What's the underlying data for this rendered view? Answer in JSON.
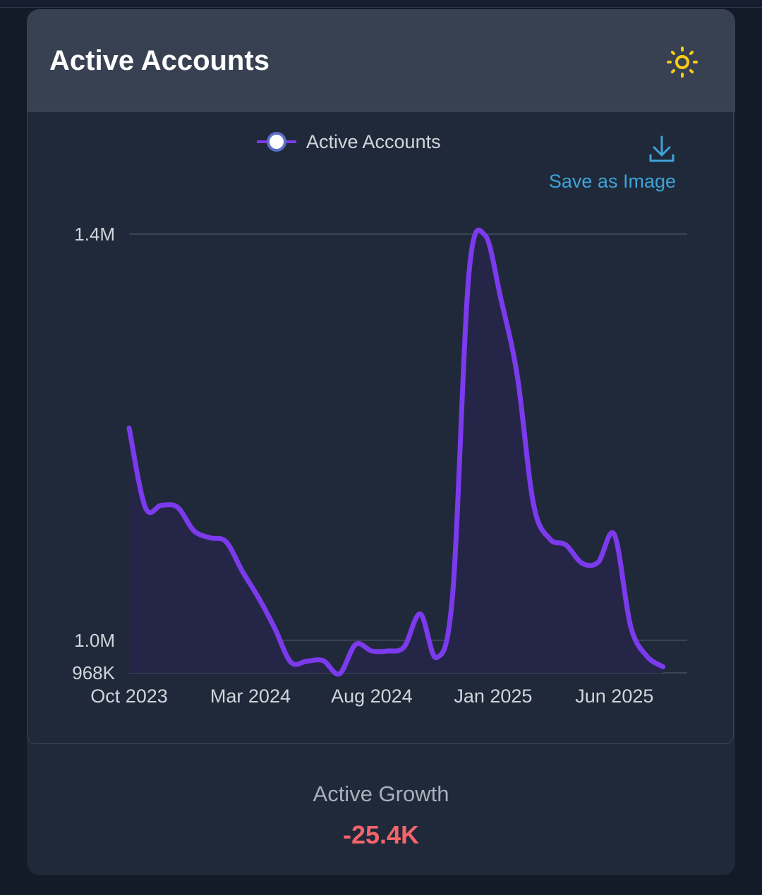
{
  "card": {
    "title": "Active Accounts",
    "theme_icon": "sun-icon"
  },
  "toolbox": {
    "save_label": "Save as Image",
    "save_icon": "download-icon"
  },
  "colors": {
    "series": "#7c3aed",
    "area": "#252647",
    "grid": "#3b4556",
    "axis_text": "#d1d5db",
    "negative": "#f4646b",
    "accent": "#3ea3d8",
    "sun": "#facc15"
  },
  "chart_data": {
    "type": "area",
    "title": "",
    "legend": {
      "position": "top-center",
      "entries": [
        "Active Accounts"
      ]
    },
    "series": [
      {
        "name": "Active Accounts",
        "smooth": true,
        "points": [
          [
            0,
            1209000
          ],
          [
            1,
            1131000
          ],
          [
            2,
            1133000
          ],
          [
            3,
            1131000
          ],
          [
            4,
            1108000
          ],
          [
            5,
            1101000
          ],
          [
            6,
            1097000
          ],
          [
            7,
            1068000
          ],
          [
            8,
            1042000
          ],
          [
            9,
            1012000
          ],
          [
            10,
            978500
          ],
          [
            11,
            979500
          ],
          [
            12,
            980000
          ],
          [
            13,
            967000
          ],
          [
            14,
            996000
          ],
          [
            15,
            989500
          ],
          [
            16,
            989500
          ],
          [
            17,
            993500
          ],
          [
            18,
            1026000
          ],
          [
            19,
            983000
          ],
          [
            20,
            1046000
          ],
          [
            21,
            1360000
          ],
          [
            22,
            1399000
          ],
          [
            23,
            1335000
          ],
          [
            24,
            1260000
          ],
          [
            25,
            1134000
          ],
          [
            26,
            1100000
          ],
          [
            27,
            1094000
          ],
          [
            28,
            1076000
          ],
          [
            29,
            1077000
          ],
          [
            30,
            1104000
          ],
          [
            31,
            1014000
          ],
          [
            32,
            984500
          ],
          [
            33,
            974000
          ]
        ]
      }
    ],
    "x_axis": {
      "start_label": "Oct 2023",
      "ticks": [
        {
          "pos": 0,
          "label": "Oct 2023"
        },
        {
          "pos": 7.5,
          "label": "Mar 2024"
        },
        {
          "pos": 15,
          "label": "Aug 2024"
        },
        {
          "pos": 22.5,
          "label": "Jan 2025"
        },
        {
          "pos": 30,
          "label": "Jun 2025"
        }
      ],
      "range": [
        0,
        34.5
      ]
    },
    "y_axis": {
      "min": 968000,
      "max": 1400000,
      "grid": true,
      "ticks": [
        {
          "value": 968000,
          "label": "968K"
        },
        {
          "value": 1000000,
          "label": "1.0M"
        },
        {
          "value": 1400000,
          "label": "1.4M"
        }
      ]
    }
  },
  "footer": {
    "label": "Active Growth",
    "value": "-25.4K"
  }
}
